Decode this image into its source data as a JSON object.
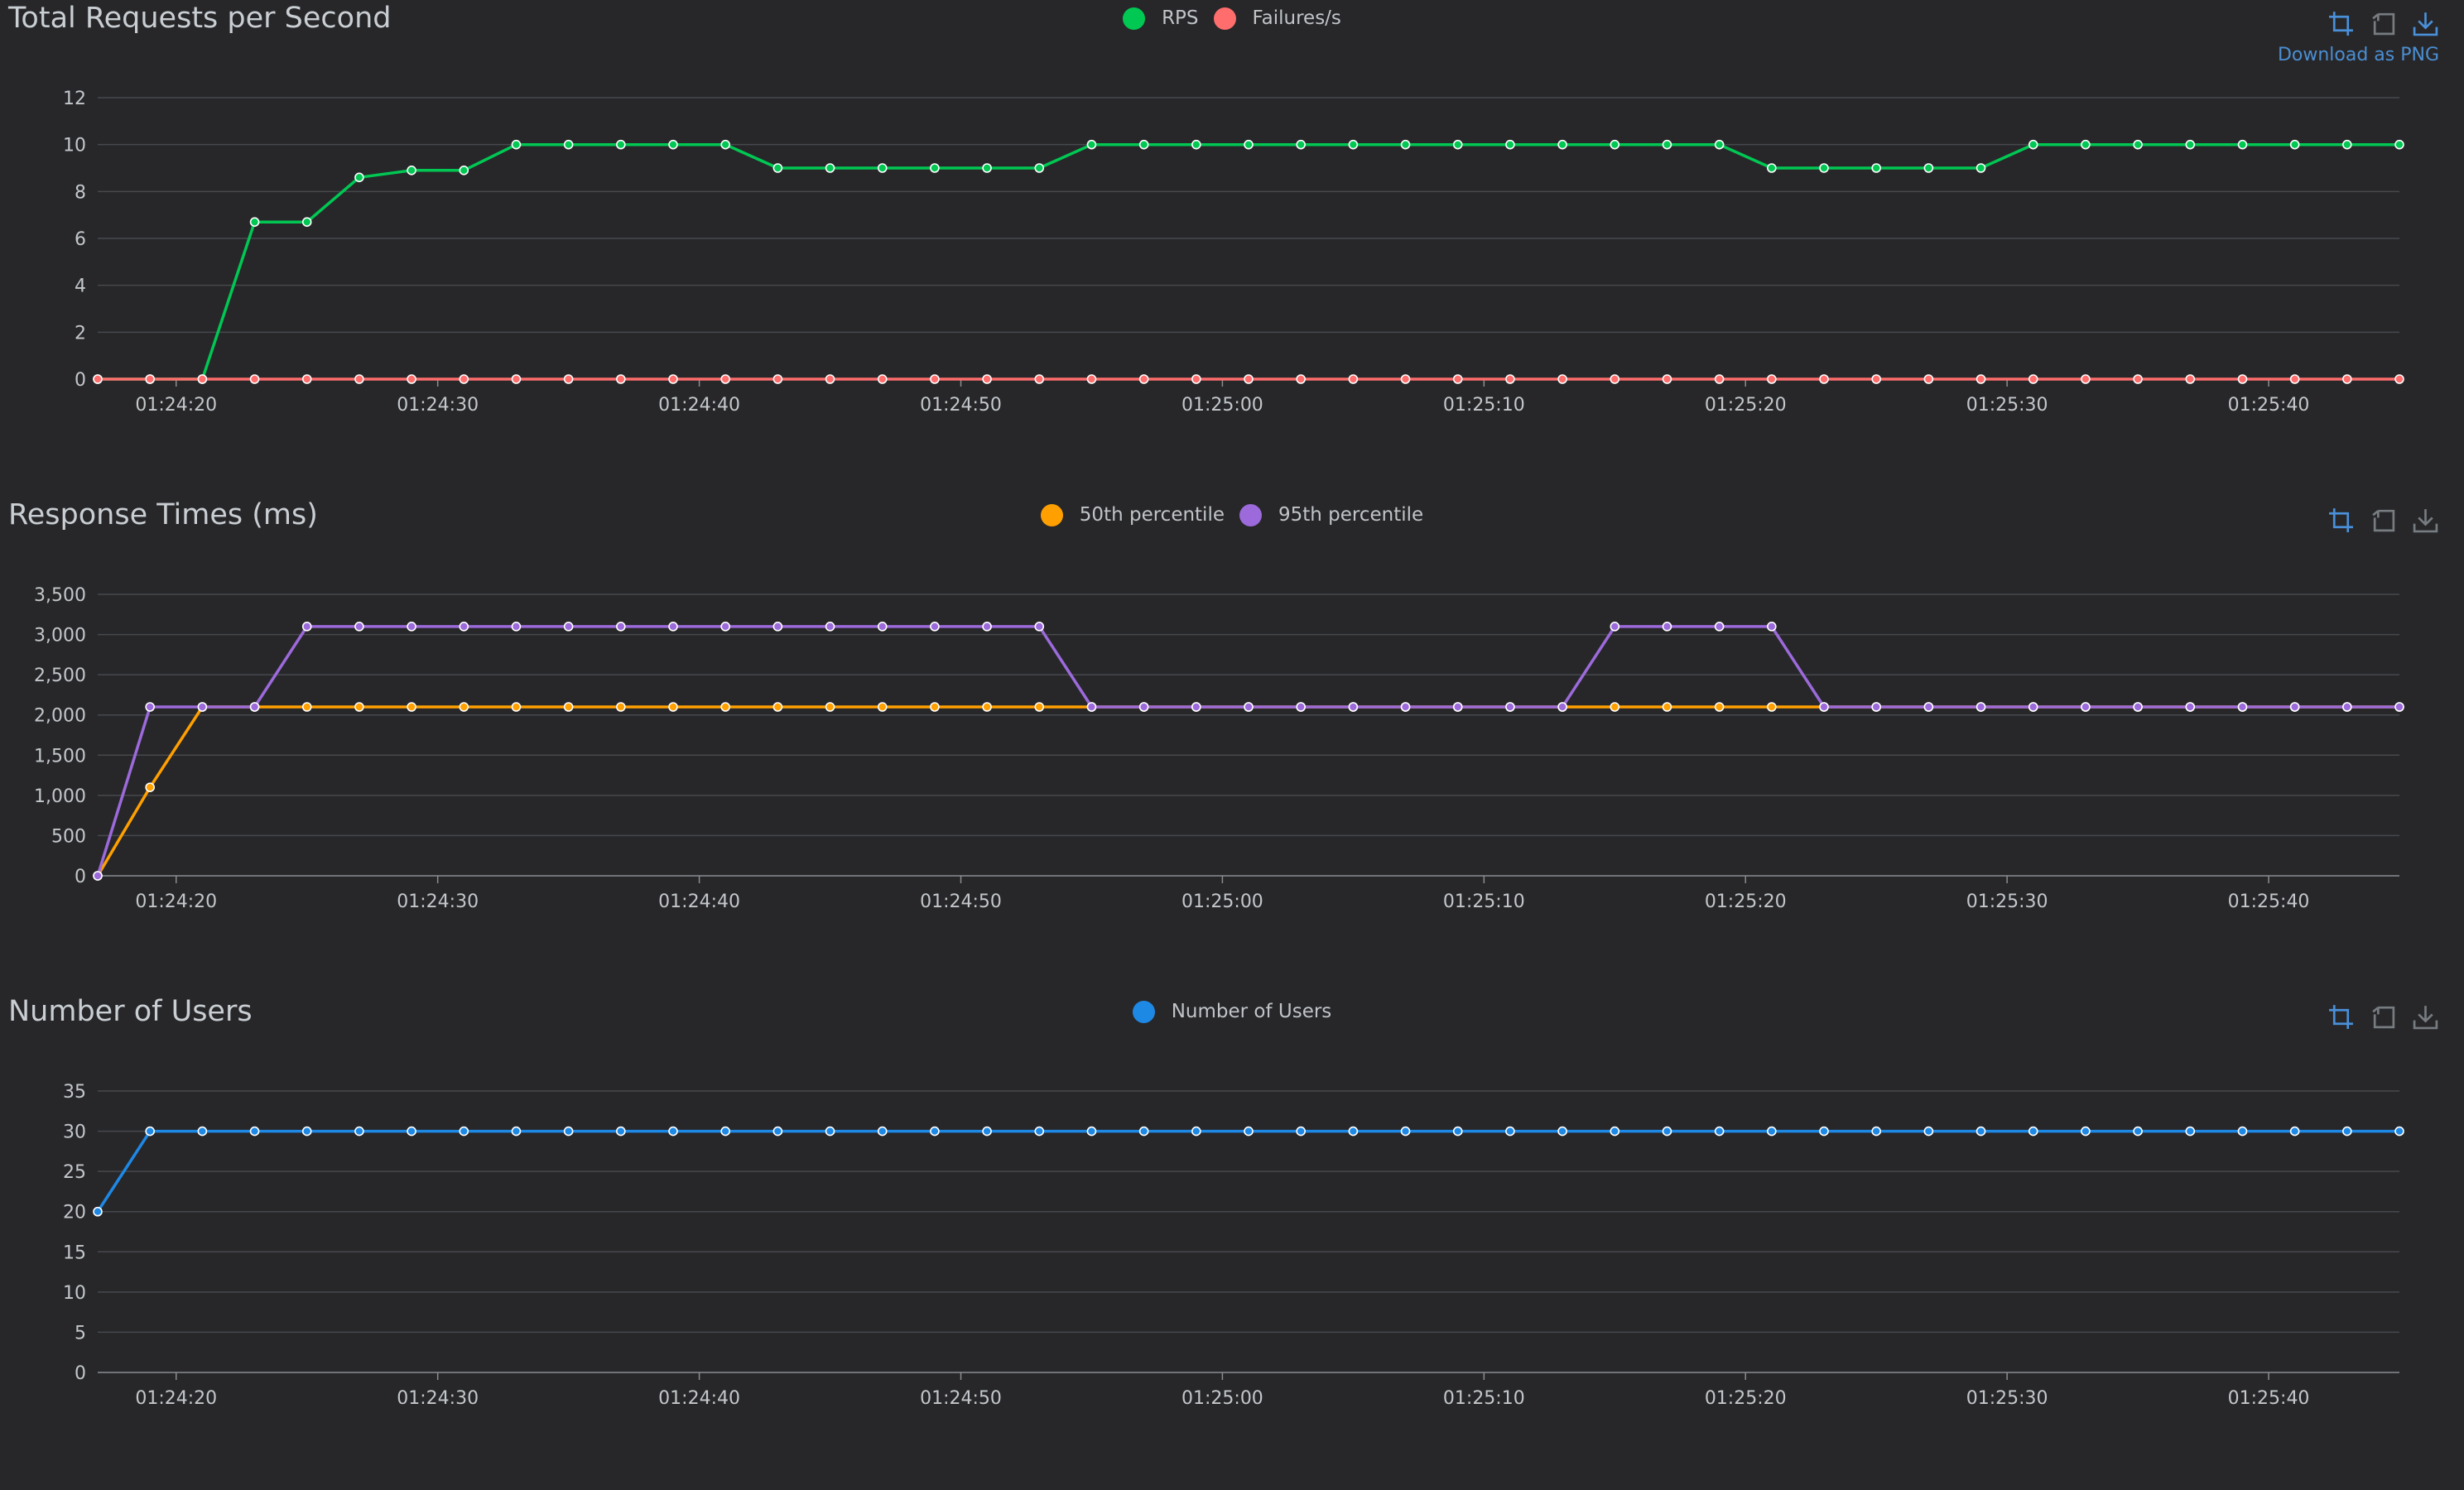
{
  "chart_data": [
    {
      "type": "line",
      "title": "Total Requests per Second",
      "show_download_label": true,
      "download_label": "Download as PNG",
      "x": [
        "01:24:17",
        "01:24:19",
        "01:24:21",
        "01:24:23",
        "01:24:25",
        "01:24:27",
        "01:24:29",
        "01:24:31",
        "01:24:33",
        "01:24:35",
        "01:24:37",
        "01:24:39",
        "01:24:41",
        "01:24:43",
        "01:24:45",
        "01:24:47",
        "01:24:49",
        "01:24:51",
        "01:24:53",
        "01:24:55",
        "01:24:57",
        "01:24:59",
        "01:25:01",
        "01:25:03",
        "01:25:05",
        "01:25:07",
        "01:25:09",
        "01:25:11",
        "01:25:13",
        "01:25:15",
        "01:25:17",
        "01:25:19",
        "01:25:21",
        "01:25:23",
        "01:25:25",
        "01:25:27",
        "01:25:29",
        "01:25:31",
        "01:25:33",
        "01:25:35",
        "01:25:37",
        "01:25:39",
        "01:25:41",
        "01:25:43",
        "01:25:45"
      ],
      "x_ticks": [
        "01:24:20",
        "01:24:30",
        "01:24:40",
        "01:24:50",
        "01:25:00",
        "01:25:10",
        "01:25:20",
        "01:25:30",
        "01:25:40"
      ],
      "ylim": [
        0,
        12
      ],
      "y_ticks": [
        "0",
        "2",
        "4",
        "6",
        "8",
        "10",
        "12"
      ],
      "series": [
        {
          "name": "RPS",
          "color": "#00c853",
          "values": [
            0,
            0,
            0,
            6.7,
            6.7,
            8.6,
            8.9,
            8.9,
            10,
            10,
            10,
            10,
            10,
            9,
            9,
            9,
            9,
            9,
            9,
            10,
            10,
            10,
            10,
            10,
            10,
            10,
            10,
            10,
            10,
            10,
            10,
            10,
            9,
            9,
            9,
            9,
            9,
            10,
            10,
            10,
            10,
            10,
            10,
            10,
            10
          ]
        },
        {
          "name": "Failures/s",
          "color": "#ff6d6d",
          "values": [
            0,
            0,
            0,
            0,
            0,
            0,
            0,
            0,
            0,
            0,
            0,
            0,
            0,
            0,
            0,
            0,
            0,
            0,
            0,
            0,
            0,
            0,
            0,
            0,
            0,
            0,
            0,
            0,
            0,
            0,
            0,
            0,
            0,
            0,
            0,
            0,
            0,
            0,
            0,
            0,
            0,
            0,
            0,
            0,
            0
          ]
        }
      ]
    },
    {
      "type": "line",
      "title": "Response Times (ms)",
      "show_download_label": false,
      "x": [
        "01:24:17",
        "01:24:19",
        "01:24:21",
        "01:24:23",
        "01:24:25",
        "01:24:27",
        "01:24:29",
        "01:24:31",
        "01:24:33",
        "01:24:35",
        "01:24:37",
        "01:24:39",
        "01:24:41",
        "01:24:43",
        "01:24:45",
        "01:24:47",
        "01:24:49",
        "01:24:51",
        "01:24:53",
        "01:24:55",
        "01:24:57",
        "01:24:59",
        "01:25:01",
        "01:25:03",
        "01:25:05",
        "01:25:07",
        "01:25:09",
        "01:25:11",
        "01:25:13",
        "01:25:15",
        "01:25:17",
        "01:25:19",
        "01:25:21",
        "01:25:23",
        "01:25:25",
        "01:25:27",
        "01:25:29",
        "01:25:31",
        "01:25:33",
        "01:25:35",
        "01:25:37",
        "01:25:39",
        "01:25:41",
        "01:25:43",
        "01:25:45"
      ],
      "x_ticks": [
        "01:24:20",
        "01:24:30",
        "01:24:40",
        "01:24:50",
        "01:25:00",
        "01:25:10",
        "01:25:20",
        "01:25:30",
        "01:25:40"
      ],
      "ylim": [
        0,
        3500
      ],
      "y_ticks": [
        "0",
        "500",
        "1,000",
        "1,500",
        "2,000",
        "2,500",
        "3,000",
        "3,500"
      ],
      "series": [
        {
          "name": "50th percentile",
          "color": "#ffa000",
          "values": [
            0,
            1100,
            2100,
            2100,
            2100,
            2100,
            2100,
            2100,
            2100,
            2100,
            2100,
            2100,
            2100,
            2100,
            2100,
            2100,
            2100,
            2100,
            2100,
            2100,
            2100,
            2100,
            2100,
            2100,
            2100,
            2100,
            2100,
            2100,
            2100,
            2100,
            2100,
            2100,
            2100,
            2100,
            2100,
            2100,
            2100,
            2100,
            2100,
            2100,
            2100,
            2100,
            2100,
            2100,
            2100
          ]
        },
        {
          "name": "95th percentile",
          "color": "#9c6ada",
          "values": [
            0,
            2100,
            2100,
            2100,
            3100,
            3100,
            3100,
            3100,
            3100,
            3100,
            3100,
            3100,
            3100,
            3100,
            3100,
            3100,
            3100,
            3100,
            3100,
            2100,
            2100,
            2100,
            2100,
            2100,
            2100,
            2100,
            2100,
            2100,
            2100,
            3100,
            3100,
            3100,
            3100,
            2100,
            2100,
            2100,
            2100,
            2100,
            2100,
            2100,
            2100,
            2100,
            2100,
            2100,
            2100
          ]
        }
      ]
    },
    {
      "type": "line",
      "title": "Number of Users",
      "show_download_label": false,
      "x": [
        "01:24:17",
        "01:24:19",
        "01:24:21",
        "01:24:23",
        "01:24:25",
        "01:24:27",
        "01:24:29",
        "01:24:31",
        "01:24:33",
        "01:24:35",
        "01:24:37",
        "01:24:39",
        "01:24:41",
        "01:24:43",
        "01:24:45",
        "01:24:47",
        "01:24:49",
        "01:24:51",
        "01:24:53",
        "01:24:55",
        "01:24:57",
        "01:24:59",
        "01:25:01",
        "01:25:03",
        "01:25:05",
        "01:25:07",
        "01:25:09",
        "01:25:11",
        "01:25:13",
        "01:25:15",
        "01:25:17",
        "01:25:19",
        "01:25:21",
        "01:25:23",
        "01:25:25",
        "01:25:27",
        "01:25:29",
        "01:25:31",
        "01:25:33",
        "01:25:35",
        "01:25:37",
        "01:25:39",
        "01:25:41",
        "01:25:43",
        "01:25:45"
      ],
      "x_ticks": [
        "01:24:20",
        "01:24:30",
        "01:24:40",
        "01:24:50",
        "01:25:00",
        "01:25:10",
        "01:25:20",
        "01:25:30",
        "01:25:40"
      ],
      "ylim": [
        0,
        35
      ],
      "y_ticks": [
        "0",
        "5",
        "10",
        "15",
        "20",
        "25",
        "30",
        "35"
      ],
      "series": [
        {
          "name": "Number of Users",
          "color": "#1e88e5",
          "values": [
            20,
            30,
            30,
            30,
            30,
            30,
            30,
            30,
            30,
            30,
            30,
            30,
            30,
            30,
            30,
            30,
            30,
            30,
            30,
            30,
            30,
            30,
            30,
            30,
            30,
            30,
            30,
            30,
            30,
            30,
            30,
            30,
            30,
            30,
            30,
            30,
            30,
            30,
            30,
            30,
            30,
            30,
            30,
            30,
            30
          ]
        }
      ]
    }
  ]
}
